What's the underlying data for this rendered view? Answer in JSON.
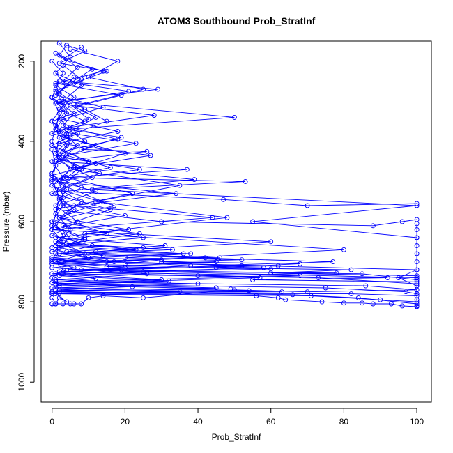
{
  "chart_data": {
    "type": "line",
    "title": "ATOM3 Southbound Prob_StratInf",
    "xlabel": "Prob_StratInf",
    "ylabel": "Pressure (mbar)",
    "xlim": [
      -3,
      104
    ],
    "ylim": [
      1050,
      150
    ],
    "y_reversed": true,
    "xticks": [
      0,
      20,
      40,
      60,
      80,
      100
    ],
    "yticks": [
      200,
      400,
      600,
      800,
      1000
    ],
    "marker": "open-circle",
    "grid": false,
    "legend": "none",
    "series_color": "#0000ff",
    "series": [
      {
        "x": [
          2,
          5,
          1,
          8,
          3,
          12,
          4,
          1,
          6,
          2,
          3,
          1,
          5,
          2,
          9,
          1,
          3,
          0,
          2,
          1,
          4,
          2,
          1,
          0
        ],
        "y": [
          155,
          190,
          230,
          260,
          300,
          340,
          380,
          420,
          460,
          500,
          540,
          580,
          620,
          650,
          680,
          700,
          720,
          740,
          760,
          780,
          800,
          790,
          805,
          805
        ]
      },
      {
        "x": [
          5,
          18,
          10,
          25,
          7,
          15,
          3,
          20,
          6,
          35,
          12,
          48,
          9,
          80,
          15,
          100,
          95,
          100
        ],
        "y": [
          170,
          200,
          240,
          270,
          310,
          350,
          390,
          430,
          470,
          510,
          550,
          590,
          630,
          670,
          700,
          720,
          740,
          760
        ]
      },
      {
        "x": [
          1,
          7,
          3,
          29,
          2,
          50,
          4,
          19,
          8,
          26,
          1,
          37,
          4,
          53,
          11,
          100,
          55,
          100
        ],
        "y": [
          180,
          215,
          250,
          270,
          300,
          340,
          370,
          390,
          420,
          425,
          450,
          470,
          490,
          500,
          520,
          560,
          600,
          640
        ]
      },
      {
        "x": [
          0,
          3,
          1,
          6,
          2,
          9,
          0,
          12,
          3,
          24,
          1,
          34,
          6,
          44,
          0,
          60,
          2,
          77,
          5,
          100
        ],
        "y": [
          200,
          230,
          260,
          290,
          320,
          350,
          380,
          410,
          440,
          470,
          500,
          530,
          560,
          590,
          620,
          650,
          680,
          700,
          720,
          740
        ]
      },
      {
        "x": [
          4,
          2,
          11,
          5,
          1,
          14,
          3,
          18,
          2,
          27,
          6,
          39,
          3,
          47,
          70,
          100
        ],
        "y": [
          160,
          185,
          220,
          255,
          285,
          315,
          345,
          375,
          405,
          435,
          465,
          495,
          525,
          545,
          560,
          555
        ]
      },
      {
        "x": [
          3,
          8,
          1,
          5,
          2,
          7,
          0,
          10,
          4,
          22,
          1,
          30,
          88,
          96,
          100
        ],
        "y": [
          210,
          245,
          275,
          310,
          345,
          380,
          410,
          450,
          490,
          530,
          570,
          600,
          610,
          600,
          595
        ]
      },
      {
        "x": [
          1,
          4,
          0,
          6,
          3,
          9,
          1,
          13,
          2,
          17,
          0,
          24,
          4,
          33,
          1,
          46,
          3,
          62,
          8,
          85,
          100
        ],
        "y": [
          230,
          260,
          290,
          330,
          360,
          400,
          440,
          480,
          520,
          560,
          600,
          630,
          655,
          670,
          680,
          690,
          700,
          710,
          720,
          730,
          745
        ]
      },
      {
        "x": [
          6,
          2,
          9,
          0,
          5,
          1,
          8,
          3,
          14,
          2,
          21,
          1,
          31,
          4,
          42,
          0,
          58,
          3,
          73,
          100
        ],
        "y": [
          240,
          280,
          320,
          350,
          390,
          430,
          470,
          510,
          550,
          590,
          620,
          640,
          660,
          675,
          690,
          705,
          715,
          730,
          740,
          755
        ]
      },
      {
        "x": [
          2,
          0,
          4,
          1,
          7,
          2,
          11,
          0,
          16,
          3,
          25,
          1,
          36,
          0,
          52,
          2,
          68,
          1,
          86,
          100
        ],
        "y": [
          250,
          290,
          330,
          370,
          410,
          450,
          490,
          530,
          570,
          610,
          640,
          660,
          680,
          695,
          710,
          725,
          735,
          750,
          760,
          770
        ]
      },
      {
        "x": [
          1,
          3,
          0,
          2,
          1,
          5,
          0,
          8,
          2,
          15,
          1,
          23,
          0,
          38,
          3,
          57,
          1,
          75,
          97,
          100
        ],
        "y": [
          270,
          310,
          350,
          390,
          430,
          470,
          510,
          550,
          590,
          630,
          650,
          670,
          690,
          710,
          725,
          740,
          755,
          765,
          775,
          780
        ]
      },
      {
        "x": [
          0,
          2,
          1,
          4,
          0,
          3,
          1,
          6,
          0,
          9,
          2,
          14,
          1,
          20,
          0,
          30,
          2,
          45,
          1,
          63,
          0,
          82,
          100
        ],
        "y": [
          290,
          330,
          370,
          410,
          450,
          490,
          530,
          570,
          610,
          640,
          665,
          685,
          700,
          715,
          730,
          745,
          755,
          765,
          772,
          775,
          778,
          780,
          785
        ]
      },
      {
        "x": [
          3,
          1,
          5,
          2,
          0,
          4,
          1,
          7,
          0,
          11,
          2,
          17,
          0,
          26,
          1,
          40,
          0,
          54,
          2,
          71,
          90,
          100
        ],
        "y": [
          320,
          360,
          400,
          440,
          480,
          520,
          560,
          600,
          635,
          660,
          680,
          700,
          715,
          730,
          745,
          755,
          765,
          772,
          778,
          785,
          795,
          800
        ]
      },
      {
        "x": [
          1,
          0,
          2,
          0,
          1,
          3,
          0,
          5,
          1,
          10,
          0,
          19,
          2,
          32,
          1,
          49,
          0,
          66,
          84,
          100
        ],
        "y": [
          360,
          400,
          440,
          480,
          520,
          560,
          600,
          640,
          670,
          690,
          705,
          720,
          735,
          748,
          758,
          768,
          775,
          782,
          790,
          805
        ]
      },
      {
        "x": [
          0,
          1,
          0,
          2,
          1,
          0,
          3,
          1,
          0,
          6,
          1,
          12,
          0,
          22,
          2,
          35,
          0,
          56,
          62,
          64,
          74,
          80,
          85,
          88,
          93,
          96,
          100
        ],
        "y": [
          420,
          460,
          500,
          540,
          580,
          620,
          650,
          680,
          700,
          715,
          730,
          742,
          752,
          762,
          770,
          775,
          780,
          785,
          790,
          795,
          800,
          803,
          803,
          805,
          805,
          810,
          812
        ]
      },
      {
        "x": [
          0,
          1,
          0,
          1,
          3,
          5,
          6,
          8,
          10,
          14,
          25,
          50,
          70,
          100
        ],
        "y": [
          805,
          805,
          790,
          805,
          805,
          805,
          805,
          805,
          790,
          785,
          790,
          770,
          775,
          770
        ]
      },
      {
        "x": [
          4,
          9,
          2,
          15,
          6,
          21,
          1,
          28,
          5,
          18,
          3,
          12,
          0,
          8,
          2,
          5,
          1,
          3,
          0
        ],
        "y": [
          160,
          175,
          205,
          225,
          255,
          275,
          305,
          335,
          365,
          395,
          425,
          455,
          485,
          515,
          545,
          575,
          605,
          635,
          665
        ]
      },
      {
        "x": [
          8,
          3,
          14,
          1,
          19,
          6,
          10,
          2,
          23,
          4,
          16,
          0,
          12,
          3,
          20,
          1,
          9,
          0
        ],
        "y": [
          165,
          195,
          225,
          255,
          285,
          315,
          345,
          375,
          405,
          435,
          465,
          495,
          525,
          555,
          585,
          615,
          645,
          675
        ]
      },
      {
        "x": [
          100,
          100,
          100,
          100,
          100,
          100,
          100,
          100,
          100,
          100,
          100,
          100
        ],
        "y": [
          605,
          620,
          640,
          660,
          680,
          700,
          720,
          740,
          760,
          780,
          795,
          810
        ]
      },
      {
        "x": [
          10,
          30,
          20,
          45,
          15,
          60,
          25,
          78,
          40,
          92,
          55,
          100
        ],
        "y": [
          690,
          695,
          705,
          700,
          712,
          718,
          725,
          728,
          735,
          740,
          745,
          750
        ]
      },
      {
        "x": [
          5,
          25,
          12,
          38,
          20,
          52,
          30,
          68,
          45,
          82,
          60,
          100
        ],
        "y": [
          660,
          665,
          675,
          680,
          690,
          695,
          700,
          705,
          715,
          720,
          728,
          735
        ]
      }
    ]
  }
}
